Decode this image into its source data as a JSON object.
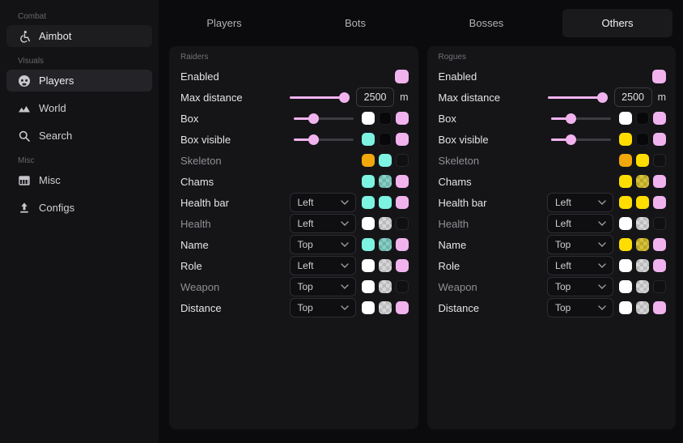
{
  "palette": {
    "pink": "#f1b3ee",
    "cyan": "#7df3e1",
    "yellow": "#ffdd00",
    "amber": "#f2a70a",
    "white": "#ffffff",
    "black": "#08080a"
  },
  "sidebar": {
    "sections": [
      {
        "label": "Combat",
        "items": [
          {
            "label": "Aimbot",
            "icon": "wheelchair-icon",
            "highlight": true
          }
        ]
      },
      {
        "label": "Visuals",
        "items": [
          {
            "label": "Players",
            "icon": "player-face-icon",
            "active": true
          },
          {
            "label": "World",
            "icon": "mountains-icon"
          },
          {
            "label": "Search",
            "icon": "search-icon"
          }
        ]
      },
      {
        "label": "Misc",
        "items": [
          {
            "label": "Misc",
            "icon": "table-icon"
          },
          {
            "label": "Configs",
            "icon": "upload-icon"
          }
        ]
      }
    ]
  },
  "tabs": [
    {
      "label": "Players"
    },
    {
      "label": "Bots"
    },
    {
      "label": "Bosses"
    },
    {
      "label": "Others",
      "active": true
    }
  ],
  "panels": [
    {
      "title": "Raiders",
      "rows": [
        {
          "label": "Enabled",
          "type": "toggle",
          "checked": true,
          "color": "pink"
        },
        {
          "label": "Max distance",
          "type": "slider-input",
          "slider_pct": 100,
          "value": "2500",
          "suffix": "m"
        },
        {
          "label": "Box",
          "type": "slider-colors",
          "slider_pct": 30,
          "colors": [
            "white",
            "black",
            "pink"
          ]
        },
        {
          "label": "Box visible",
          "type": "slider-colors",
          "slider_pct": 30,
          "colors": [
            "cyan",
            "black",
            "pink"
          ]
        },
        {
          "label": "Skeleton",
          "type": "colors",
          "muted": true,
          "colors": [
            "amber",
            "cyan",
            "none"
          ]
        },
        {
          "label": "Chams",
          "type": "colors",
          "colors": [
            "cyan",
            "cyan/a",
            "pink"
          ]
        },
        {
          "label": "Health bar",
          "type": "select-colors",
          "select": "Left",
          "colors": [
            "cyan",
            "cyan",
            "pink"
          ]
        },
        {
          "label": "Health",
          "type": "select-colors",
          "muted": true,
          "select": "Left",
          "colors": [
            "white",
            "white/a",
            "none"
          ]
        },
        {
          "label": "Name",
          "type": "select-colors",
          "select": "Top",
          "colors": [
            "cyan",
            "cyan/a",
            "pink"
          ]
        },
        {
          "label": "Role",
          "type": "select-colors",
          "select": "Left",
          "colors": [
            "white",
            "white/a",
            "pink"
          ]
        },
        {
          "label": "Weapon",
          "type": "select-colors",
          "muted": true,
          "select": "Top",
          "colors": [
            "white",
            "white/a",
            "none"
          ]
        },
        {
          "label": "Distance",
          "type": "select-colors",
          "select": "Top",
          "colors": [
            "white",
            "white/a",
            "pink"
          ]
        }
      ]
    },
    {
      "title": "Rogues",
      "rows": [
        {
          "label": "Enabled",
          "type": "toggle",
          "checked": true,
          "color": "pink"
        },
        {
          "label": "Max distance",
          "type": "slider-input",
          "slider_pct": 100,
          "value": "2500",
          "suffix": "m"
        },
        {
          "label": "Box",
          "type": "slider-colors",
          "slider_pct": 30,
          "colors": [
            "white",
            "black",
            "pink"
          ]
        },
        {
          "label": "Box visible",
          "type": "slider-colors",
          "slider_pct": 30,
          "colors": [
            "yellow",
            "black",
            "pink"
          ]
        },
        {
          "label": "Skeleton",
          "type": "colors",
          "muted": true,
          "colors": [
            "amber",
            "yellow",
            "none"
          ]
        },
        {
          "label": "Chams",
          "type": "colors",
          "colors": [
            "yellow",
            "yellow/a",
            "pink"
          ]
        },
        {
          "label": "Health bar",
          "type": "select-colors",
          "select": "Left",
          "colors": [
            "yellow",
            "yellow",
            "pink"
          ]
        },
        {
          "label": "Health",
          "type": "select-colors",
          "muted": true,
          "select": "Left",
          "colors": [
            "white",
            "white/a",
            "none"
          ]
        },
        {
          "label": "Name",
          "type": "select-colors",
          "select": "Top",
          "colors": [
            "yellow",
            "yellow/a",
            "pink"
          ]
        },
        {
          "label": "Role",
          "type": "select-colors",
          "select": "Left",
          "colors": [
            "white",
            "white/a",
            "pink"
          ]
        },
        {
          "label": "Weapon",
          "type": "select-colors",
          "muted": true,
          "select": "Top",
          "colors": [
            "white",
            "white/a",
            "none"
          ]
        },
        {
          "label": "Distance",
          "type": "select-colors",
          "select": "Top",
          "colors": [
            "white",
            "white/a",
            "pink"
          ]
        }
      ]
    }
  ]
}
